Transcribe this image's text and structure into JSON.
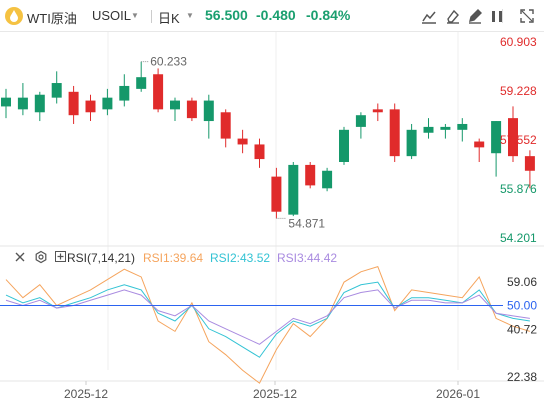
{
  "header": {
    "symbol_name": "WTI原油",
    "symbol_code": "USOIL",
    "period": "日K",
    "price": "56.500",
    "change": "-0.480",
    "change_pct": "-0.84%",
    "tools": [
      "line-tool-icon",
      "eraser-icon",
      "pen-tool-icon",
      "eye-icon",
      "fullscreen-icon"
    ]
  },
  "colors": {
    "up": "#e02b2b",
    "down": "#15986a",
    "quote": "#1a9f6f",
    "rsi1": "#f5a45d",
    "rsi2": "#33c3d4",
    "rsi3": "#a98be0",
    "ref_line": "#2b63f0"
  },
  "chart_data": [
    {
      "type": "candlestick",
      "y_ticks": [
        "60.903",
        "59.228",
        "57.552",
        "55.876",
        "54.201"
      ],
      "ylim": [
        54.201,
        60.903
      ],
      "x_tick_labels": [
        "2025-12",
        "2025-12",
        "2026-01"
      ],
      "annotations": [
        {
          "text": "60.233",
          "label": "high"
        },
        {
          "text": "54.871",
          "label": "low"
        }
      ],
      "candles": [
        {
          "o": 58.7,
          "h": 59.3,
          "l": 58.3,
          "c": 59.0,
          "dir": "down"
        },
        {
          "o": 58.6,
          "h": 59.5,
          "l": 58.4,
          "c": 59.0,
          "dir": "down"
        },
        {
          "o": 58.5,
          "h": 59.2,
          "l": 58.2,
          "c": 59.1,
          "dir": "down"
        },
        {
          "o": 59.0,
          "h": 59.9,
          "l": 58.8,
          "c": 59.5,
          "dir": "down"
        },
        {
          "o": 59.2,
          "h": 59.4,
          "l": 58.1,
          "c": 58.4,
          "dir": "up"
        },
        {
          "o": 58.9,
          "h": 59.1,
          "l": 58.2,
          "c": 58.5,
          "dir": "up"
        },
        {
          "o": 58.6,
          "h": 59.3,
          "l": 58.4,
          "c": 59.0,
          "dir": "down"
        },
        {
          "o": 58.9,
          "h": 59.8,
          "l": 58.7,
          "c": 59.4,
          "dir": "down"
        },
        {
          "o": 59.3,
          "h": 60.23,
          "l": 59.2,
          "c": 59.7,
          "dir": "down"
        },
        {
          "o": 59.8,
          "h": 60.0,
          "l": 58.5,
          "c": 58.6,
          "dir": "up"
        },
        {
          "o": 58.6,
          "h": 59.0,
          "l": 58.2,
          "c": 58.9,
          "dir": "down"
        },
        {
          "o": 58.9,
          "h": 59.0,
          "l": 58.2,
          "c": 58.3,
          "dir": "up"
        },
        {
          "o": 58.2,
          "h": 59.1,
          "l": 57.6,
          "c": 58.9,
          "dir": "down"
        },
        {
          "o": 58.5,
          "h": 58.6,
          "l": 57.3,
          "c": 57.6,
          "dir": "up"
        },
        {
          "o": 57.6,
          "h": 57.9,
          "l": 57.1,
          "c": 57.4,
          "dir": "up"
        },
        {
          "o": 57.4,
          "h": 57.6,
          "l": 56.6,
          "c": 56.9,
          "dir": "up"
        },
        {
          "o": 56.3,
          "h": 56.6,
          "l": 54.871,
          "c": 55.1,
          "dir": "up"
        },
        {
          "o": 55.0,
          "h": 56.8,
          "l": 54.95,
          "c": 56.7,
          "dir": "down"
        },
        {
          "o": 56.7,
          "h": 56.8,
          "l": 55.9,
          "c": 56.0,
          "dir": "up"
        },
        {
          "o": 55.9,
          "h": 56.6,
          "l": 55.8,
          "c": 56.5,
          "dir": "down"
        },
        {
          "o": 56.8,
          "h": 58.0,
          "l": 56.7,
          "c": 57.9,
          "dir": "down"
        },
        {
          "o": 58.0,
          "h": 58.5,
          "l": 57.6,
          "c": 58.4,
          "dir": "down"
        },
        {
          "o": 58.5,
          "h": 58.8,
          "l": 58.2,
          "c": 58.6,
          "dir": "up"
        },
        {
          "o": 58.6,
          "h": 58.8,
          "l": 56.8,
          "c": 57.0,
          "dir": "up"
        },
        {
          "o": 57.0,
          "h": 58.1,
          "l": 56.9,
          "c": 57.9,
          "dir": "down"
        },
        {
          "o": 57.8,
          "h": 58.3,
          "l": 57.6,
          "c": 58.0,
          "dir": "down"
        },
        {
          "o": 58.0,
          "h": 58.1,
          "l": 57.6,
          "c": 57.9,
          "dir": "down"
        },
        {
          "o": 57.9,
          "h": 58.3,
          "l": 57.5,
          "c": 58.1,
          "dir": "down"
        },
        {
          "o": 57.5,
          "h": 57.6,
          "l": 56.8,
          "c": 57.3,
          "dir": "up"
        },
        {
          "o": 57.1,
          "h": 58.2,
          "l": 56.3,
          "c": 58.2,
          "dir": "down"
        },
        {
          "o": 58.3,
          "h": 58.7,
          "l": 56.8,
          "c": 57.0,
          "dir": "up"
        },
        {
          "o": 57.0,
          "h": 57.2,
          "l": 55.9,
          "c": 56.5,
          "dir": "up"
        }
      ]
    },
    {
      "type": "line",
      "title": "RSI(7,14,21)",
      "y_ticks": [
        "59.06",
        "50.00",
        "40.72",
        "22.38"
      ],
      "ylim": [
        18,
        70
      ],
      "reference_line": 50,
      "series": [
        {
          "name": "RSI1",
          "label": "RSI1:39.64",
          "values": [
            60,
            53,
            58,
            50,
            53,
            56,
            60,
            64,
            61,
            44,
            40,
            51,
            36,
            31,
            25,
            20,
            33,
            43,
            38,
            45,
            59,
            63,
            65,
            48,
            56,
            55,
            54,
            53,
            61,
            45,
            42,
            40
          ]
        },
        {
          "name": "RSI2",
          "label": "RSI2:43.52",
          "values": [
            54,
            51,
            53,
            49,
            51,
            53,
            56,
            58,
            56,
            47,
            44,
            50,
            41,
            38,
            34,
            30,
            39,
            44,
            42,
            45,
            55,
            58,
            59,
            49,
            53,
            53,
            52,
            51,
            56,
            47,
            45,
            44
          ]
        },
        {
          "name": "RSI3",
          "label": "RSI3:44.42",
          "values": [
            52,
            50,
            52,
            49,
            50,
            52,
            54,
            56,
            54,
            48,
            46,
            50,
            44,
            41,
            38,
            35,
            40,
            45,
            43,
            46,
            53,
            55,
            56,
            49,
            52,
            52,
            51,
            51,
            54,
            47,
            46,
            45
          ]
        }
      ]
    }
  ]
}
